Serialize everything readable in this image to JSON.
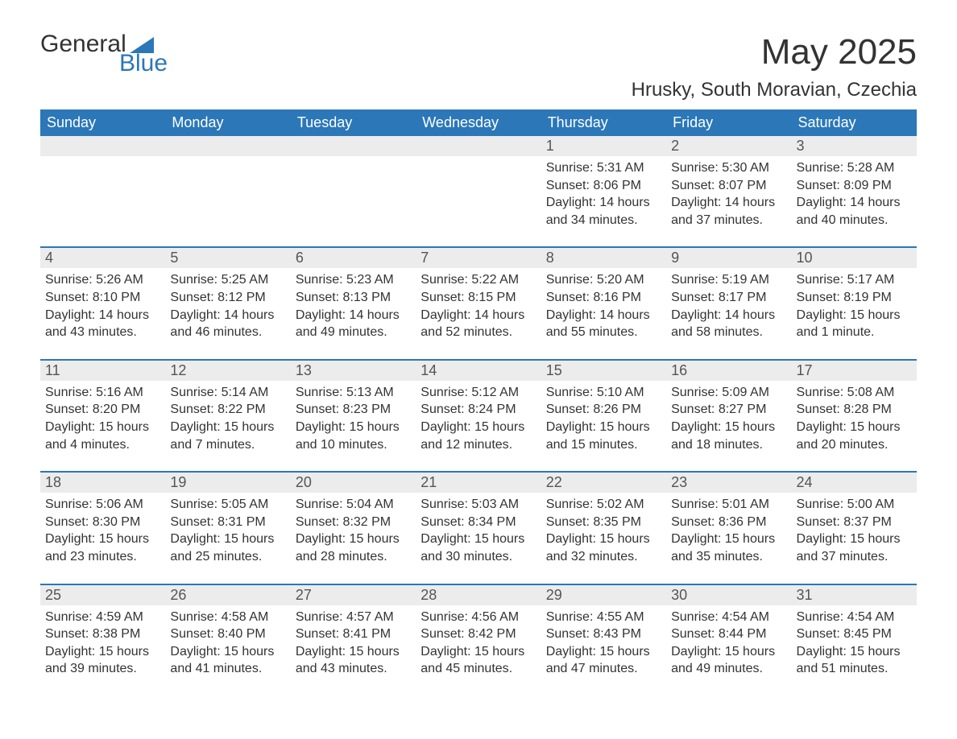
{
  "brand": {
    "word1": "General",
    "word2": "Blue",
    "tri_color": "#2b77b8"
  },
  "title": "May 2025",
  "location": "Hrusky, South Moravian, Czechia",
  "colors": {
    "header_bg": "#2b77b8",
    "header_text": "#ffffff",
    "dayhead_bg": "#ececec",
    "dayhead_border": "#2b77b8",
    "text": "#333333"
  },
  "weekdays": [
    "Sunday",
    "Monday",
    "Tuesday",
    "Wednesday",
    "Thursday",
    "Friday",
    "Saturday"
  ],
  "weeks": [
    [
      null,
      null,
      null,
      null,
      {
        "n": "1",
        "sunrise": "5:31 AM",
        "sunset": "8:06 PM",
        "daylight": "14 hours and 34 minutes."
      },
      {
        "n": "2",
        "sunrise": "5:30 AM",
        "sunset": "8:07 PM",
        "daylight": "14 hours and 37 minutes."
      },
      {
        "n": "3",
        "sunrise": "5:28 AM",
        "sunset": "8:09 PM",
        "daylight": "14 hours and 40 minutes."
      }
    ],
    [
      {
        "n": "4",
        "sunrise": "5:26 AM",
        "sunset": "8:10 PM",
        "daylight": "14 hours and 43 minutes."
      },
      {
        "n": "5",
        "sunrise": "5:25 AM",
        "sunset": "8:12 PM",
        "daylight": "14 hours and 46 minutes."
      },
      {
        "n": "6",
        "sunrise": "5:23 AM",
        "sunset": "8:13 PM",
        "daylight": "14 hours and 49 minutes."
      },
      {
        "n": "7",
        "sunrise": "5:22 AM",
        "sunset": "8:15 PM",
        "daylight": "14 hours and 52 minutes."
      },
      {
        "n": "8",
        "sunrise": "5:20 AM",
        "sunset": "8:16 PM",
        "daylight": "14 hours and 55 minutes."
      },
      {
        "n": "9",
        "sunrise": "5:19 AM",
        "sunset": "8:17 PM",
        "daylight": "14 hours and 58 minutes."
      },
      {
        "n": "10",
        "sunrise": "5:17 AM",
        "sunset": "8:19 PM",
        "daylight": "15 hours and 1 minute."
      }
    ],
    [
      {
        "n": "11",
        "sunrise": "5:16 AM",
        "sunset": "8:20 PM",
        "daylight": "15 hours and 4 minutes."
      },
      {
        "n": "12",
        "sunrise": "5:14 AM",
        "sunset": "8:22 PM",
        "daylight": "15 hours and 7 minutes."
      },
      {
        "n": "13",
        "sunrise": "5:13 AM",
        "sunset": "8:23 PM",
        "daylight": "15 hours and 10 minutes."
      },
      {
        "n": "14",
        "sunrise": "5:12 AM",
        "sunset": "8:24 PM",
        "daylight": "15 hours and 12 minutes."
      },
      {
        "n": "15",
        "sunrise": "5:10 AM",
        "sunset": "8:26 PM",
        "daylight": "15 hours and 15 minutes."
      },
      {
        "n": "16",
        "sunrise": "5:09 AM",
        "sunset": "8:27 PM",
        "daylight": "15 hours and 18 minutes."
      },
      {
        "n": "17",
        "sunrise": "5:08 AM",
        "sunset": "8:28 PM",
        "daylight": "15 hours and 20 minutes."
      }
    ],
    [
      {
        "n": "18",
        "sunrise": "5:06 AM",
        "sunset": "8:30 PM",
        "daylight": "15 hours and 23 minutes."
      },
      {
        "n": "19",
        "sunrise": "5:05 AM",
        "sunset": "8:31 PM",
        "daylight": "15 hours and 25 minutes."
      },
      {
        "n": "20",
        "sunrise": "5:04 AM",
        "sunset": "8:32 PM",
        "daylight": "15 hours and 28 minutes."
      },
      {
        "n": "21",
        "sunrise": "5:03 AM",
        "sunset": "8:34 PM",
        "daylight": "15 hours and 30 minutes."
      },
      {
        "n": "22",
        "sunrise": "5:02 AM",
        "sunset": "8:35 PM",
        "daylight": "15 hours and 32 minutes."
      },
      {
        "n": "23",
        "sunrise": "5:01 AM",
        "sunset": "8:36 PM",
        "daylight": "15 hours and 35 minutes."
      },
      {
        "n": "24",
        "sunrise": "5:00 AM",
        "sunset": "8:37 PM",
        "daylight": "15 hours and 37 minutes."
      }
    ],
    [
      {
        "n": "25",
        "sunrise": "4:59 AM",
        "sunset": "8:38 PM",
        "daylight": "15 hours and 39 minutes."
      },
      {
        "n": "26",
        "sunrise": "4:58 AM",
        "sunset": "8:40 PM",
        "daylight": "15 hours and 41 minutes."
      },
      {
        "n": "27",
        "sunrise": "4:57 AM",
        "sunset": "8:41 PM",
        "daylight": "15 hours and 43 minutes."
      },
      {
        "n": "28",
        "sunrise": "4:56 AM",
        "sunset": "8:42 PM",
        "daylight": "15 hours and 45 minutes."
      },
      {
        "n": "29",
        "sunrise": "4:55 AM",
        "sunset": "8:43 PM",
        "daylight": "15 hours and 47 minutes."
      },
      {
        "n": "30",
        "sunrise": "4:54 AM",
        "sunset": "8:44 PM",
        "daylight": "15 hours and 49 minutes."
      },
      {
        "n": "31",
        "sunrise": "4:54 AM",
        "sunset": "8:45 PM",
        "daylight": "15 hours and 51 minutes."
      }
    ]
  ],
  "labels": {
    "sunrise": "Sunrise: ",
    "sunset": "Sunset: ",
    "daylight": "Daylight: "
  }
}
